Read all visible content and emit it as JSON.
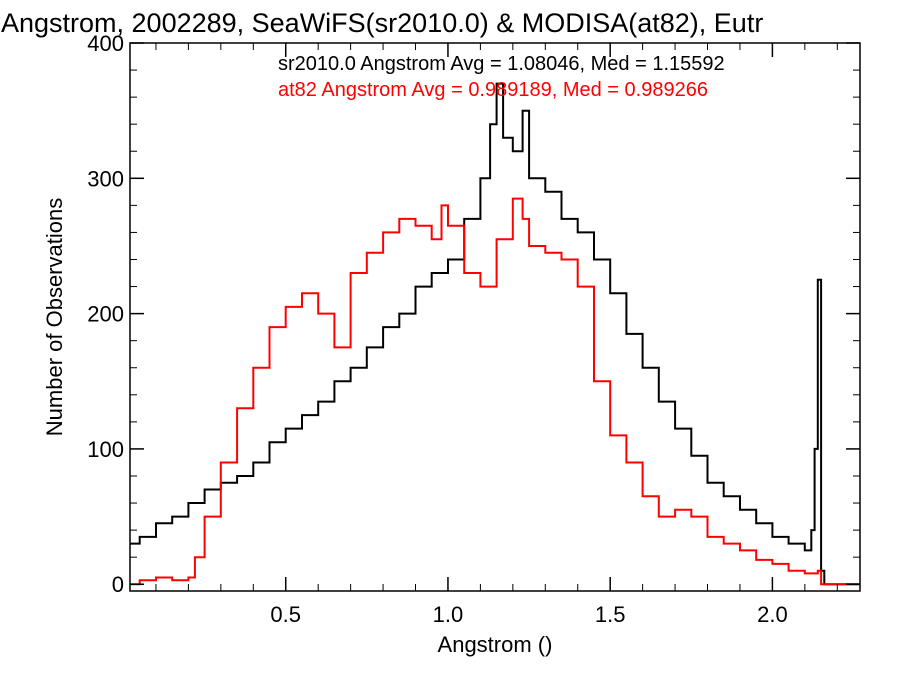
{
  "chart_data": {
    "type": "line",
    "title": "Angstrom, 2002289, SeaWiFS(sr2010.0) & MODISA(at82), Eutr",
    "xlabel": "Angstrom ()",
    "ylabel": "Number of Observations",
    "xlim": [
      0.02,
      2.27
    ],
    "ylim": [
      -5,
      400
    ],
    "x_ticks": [
      0.5,
      1.0,
      1.5,
      2.0
    ],
    "x_tick_labels": [
      "0.5",
      "1.0",
      "1.5",
      "2.0"
    ],
    "y_ticks": [
      0,
      100,
      200,
      300,
      400
    ],
    "y_tick_labels": [
      "0",
      "100",
      "200",
      "300",
      "400"
    ],
    "grid": false,
    "step": true,
    "annotations": [
      {
        "text": "sr2010.0 Angstrom Avg = 1.08046, Med = 1.15592",
        "color": "#000000"
      },
      {
        "text": "at82 Angstrom Avg = 0.989189, Med = 0.989266",
        "color": "#ff0000"
      }
    ],
    "series": [
      {
        "color": "#000000",
        "x": [
          0.02,
          0.05,
          0.1,
          0.15,
          0.2,
          0.25,
          0.3,
          0.35,
          0.4,
          0.45,
          0.5,
          0.55,
          0.6,
          0.65,
          0.7,
          0.75,
          0.8,
          0.85,
          0.9,
          0.95,
          1.0,
          1.05,
          1.1,
          1.13,
          1.15,
          1.17,
          1.2,
          1.23,
          1.25,
          1.3,
          1.35,
          1.4,
          1.45,
          1.5,
          1.55,
          1.6,
          1.65,
          1.7,
          1.75,
          1.8,
          1.85,
          1.9,
          1.95,
          2.0,
          2.05,
          2.1,
          2.12,
          2.13,
          2.14,
          2.15,
          2.16,
          2.2,
          2.27
        ],
        "y": [
          30,
          35,
          45,
          50,
          60,
          70,
          75,
          80,
          90,
          105,
          115,
          125,
          135,
          150,
          160,
          175,
          190,
          200,
          220,
          230,
          240,
          270,
          300,
          340,
          370,
          330,
          320,
          350,
          300,
          290,
          270,
          260,
          240,
          215,
          185,
          160,
          135,
          115,
          95,
          75,
          65,
          55,
          45,
          35,
          30,
          25,
          40,
          100,
          225,
          10,
          0,
          0,
          0
        ]
      },
      {
        "color": "#ff0000",
        "x": [
          0.02,
          0.05,
          0.1,
          0.15,
          0.2,
          0.22,
          0.25,
          0.3,
          0.35,
          0.4,
          0.45,
          0.5,
          0.55,
          0.6,
          0.65,
          0.7,
          0.75,
          0.8,
          0.85,
          0.9,
          0.95,
          0.98,
          1.0,
          1.05,
          1.1,
          1.15,
          1.2,
          1.23,
          1.25,
          1.3,
          1.35,
          1.4,
          1.45,
          1.5,
          1.55,
          1.6,
          1.65,
          1.7,
          1.75,
          1.8,
          1.85,
          1.9,
          1.95,
          2.0,
          2.05,
          2.1,
          2.14,
          2.15,
          2.16,
          2.2,
          2.27
        ],
        "y": [
          0,
          3,
          5,
          3,
          5,
          20,
          50,
          90,
          130,
          160,
          190,
          205,
          215,
          200,
          175,
          230,
          245,
          260,
          270,
          265,
          255,
          280,
          265,
          230,
          220,
          255,
          285,
          270,
          250,
          245,
          240,
          220,
          150,
          110,
          90,
          65,
          50,
          55,
          50,
          35,
          30,
          25,
          18,
          15,
          10,
          8,
          10,
          0,
          0,
          0,
          0
        ]
      }
    ]
  }
}
